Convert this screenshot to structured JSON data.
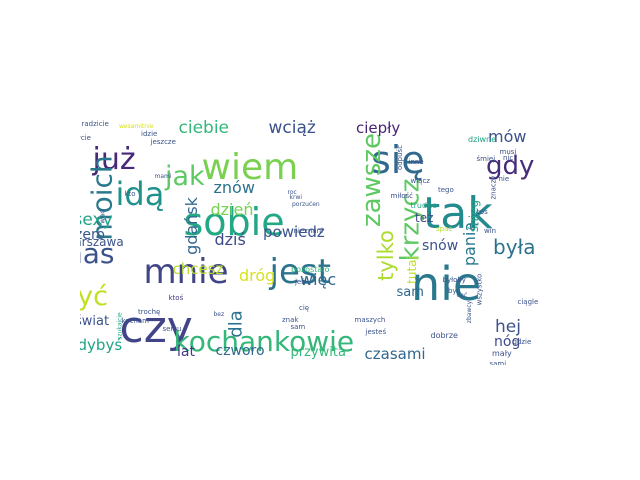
{
  "word_cloud": {
    "words": [
      {
        "text": "tak",
        "color": "#238a8d",
        "rotated": false
      },
      {
        "text": "nie",
        "color": "#2a788e",
        "rotated": false
      },
      {
        "text": "sobie",
        "color": "#22a884",
        "rotated": false
      },
      {
        "text": "mnie",
        "color": "#414487",
        "rotated": false
      },
      {
        "text": "jest",
        "color": "#2c728e",
        "rotated": false
      },
      {
        "text": "czy",
        "color": "#414487",
        "rotated": false
      },
      {
        "text": "kochankowie",
        "color": "#35b779",
        "rotated": false
      },
      {
        "text": "wiem",
        "color": "#7ad151",
        "rotated": false
      },
      {
        "text": "się",
        "color": "#31688e",
        "rotated": false
      },
      {
        "text": "idą",
        "color": "#21918c",
        "rotated": false
      },
      {
        "text": "już",
        "color": "#482878",
        "rotated": false
      },
      {
        "text": "jak",
        "color": "#5ec962",
        "rotated": false
      },
      {
        "text": "gdy",
        "color": "#472c7a",
        "rotated": false
      },
      {
        "text": "nas",
        "color": "#3b528b",
        "rotated": false
      },
      {
        "text": "być",
        "color": "#c2df23",
        "rotated": false
      },
      {
        "text": "krzycz",
        "color": "#5ec962",
        "rotated": true
      },
      {
        "text": "zawsze",
        "color": "#5ec962",
        "rotated": true
      },
      {
        "text": "moich",
        "color": "#2a788e",
        "rotated": true
      },
      {
        "text": "tylko",
        "color": "#addc30",
        "rotated": true
      },
      {
        "text": "ciebie",
        "color": "#35b779",
        "rotated": false
      },
      {
        "text": "wciąż",
        "color": "#3b528b",
        "rotated": false
      },
      {
        "text": "ciepły",
        "color": "#482475",
        "rotated": false
      },
      {
        "text": "sexy",
        "color": "#20a386",
        "rotated": false
      },
      {
        "text": "dzień",
        "color": "#7ad151",
        "rotated": false
      },
      {
        "text": "znów",
        "color": "#2c728e",
        "rotated": false
      },
      {
        "text": "gdańsk",
        "color": "#31688e",
        "rotated": true
      },
      {
        "text": "dziś",
        "color": "#3e4a89",
        "rotated": false
      },
      {
        "text": "powiedz",
        "color": "#3b528b",
        "rotated": false
      },
      {
        "text": "była",
        "color": "#2c728e",
        "rotated": false
      },
      {
        "text": "panią",
        "color": "#2a788e",
        "rotated": true
      },
      {
        "text": "mów",
        "color": "#3b528b",
        "rotated": false
      },
      {
        "text": "snów",
        "color": "#3b528b",
        "rotated": false
      },
      {
        "text": "chcesz",
        "color": "#b5de2b",
        "rotated": false
      },
      {
        "text": "dróg",
        "color": "#d8e219",
        "rotated": false
      },
      {
        "text": "więc",
        "color": "#31688e",
        "rotated": false
      },
      {
        "text": "dla",
        "color": "#2c728e",
        "rotated": true
      },
      {
        "text": "hej",
        "color": "#3b528b",
        "rotated": false
      },
      {
        "text": "nóg",
        "color": "#3e4a89",
        "rotated": false
      },
      {
        "text": "czasami",
        "color": "#31688e",
        "rotated": false
      },
      {
        "text": "czworo",
        "color": "#31688e",
        "rotated": false
      },
      {
        "text": "gdybyś",
        "color": "#20a386",
        "rotated": false
      },
      {
        "text": "lat",
        "color": "#443983",
        "rotated": false
      },
      {
        "text": "przywita",
        "color": "#35b779",
        "rotated": false
      },
      {
        "text": "świat",
        "color": "#3b528b",
        "rotated": false
      },
      {
        "text": "zero",
        "color": "#38598c",
        "rotated": false
      },
      {
        "text": "warszawa",
        "color": "#3b528b",
        "rotated": false
      },
      {
        "text": "sam",
        "color": "#31688e",
        "rotated": false
      },
      {
        "text": "też",
        "color": "#3e4a89",
        "rotated": false
      },
      {
        "text": "tutaj",
        "color": "#c2df23",
        "rotated": true
      },
      {
        "text": "śnieg",
        "color": "#20a386",
        "rotated": true
      },
      {
        "text": "pozostało",
        "color": "#35b779",
        "rotated": false
      },
      {
        "text": "jeśli",
        "color": "#3b528b",
        "rotated": false
      },
      {
        "text": "cię",
        "color": "#3b528b",
        "rotated": false
      },
      {
        "text": "ktoś",
        "color": "#443983",
        "rotated": false
      },
      {
        "text": "maszych",
        "color": "#3b528b",
        "rotated": false
      },
      {
        "text": "jesteś",
        "color": "#3b528b",
        "rotated": false
      },
      {
        "text": "dobrze",
        "color": "#3b528b",
        "rotated": false
      },
      {
        "text": "mały",
        "color": "#3b528b",
        "rotated": false
      },
      {
        "text": "sami",
        "color": "#3b528b",
        "rotated": false
      },
      {
        "text": "ciągle",
        "color": "#3b528b",
        "rotated": false
      },
      {
        "text": "gdzie",
        "color": "#3b528b",
        "rotated": false
      },
      {
        "text": "wszystko",
        "color": "#3b528b",
        "rotated": true
      },
      {
        "text": "dać",
        "color": "#3b528b",
        "rotated": false
      },
      {
        "text": "zbawcy",
        "color": "#3b528b",
        "rotated": true
      },
      {
        "text": "byłoby",
        "color": "#3b528b",
        "rotated": false
      },
      {
        "text": "być",
        "color": "#3b528b",
        "rotated": false
      },
      {
        "text": "spać",
        "color": "#b5de2b",
        "rotated": false
      },
      {
        "text": "trudne",
        "color": "#20a386",
        "rotated": false
      },
      {
        "text": "wiącz",
        "color": "#3b528b",
        "rotated": false
      },
      {
        "text": "tego",
        "color": "#3b528b",
        "rotated": false
      },
      {
        "text": "miłość",
        "color": "#3b528b",
        "rotated": false
      },
      {
        "text": "odpuść",
        "color": "#3b528b",
        "rotated": true
      },
      {
        "text": "inne",
        "color": "#3b528b",
        "rotated": false
      },
      {
        "text": "dziwne",
        "color": "#20a386",
        "rotated": false
      },
      {
        "text": "śmiej",
        "color": "#3b528b",
        "rotated": false
      },
      {
        "text": "musi",
        "color": "#3b528b",
        "rotated": false
      },
      {
        "text": "nic",
        "color": "#3b528b",
        "rotated": false
      },
      {
        "text": "nie",
        "color": "#3b528b",
        "rotated": false
      },
      {
        "text": "znaczy",
        "color": "#3b528b",
        "rotated": true
      },
      {
        "text": "cos",
        "color": "#3b528b",
        "rotated": false
      },
      {
        "text": "win",
        "color": "#3b528b",
        "rotated": false
      },
      {
        "text": "wesamitnie",
        "color": "#d8e219",
        "rotated": false
      },
      {
        "text": "radzicie",
        "color": "#3b528b",
        "rotated": false
      },
      {
        "text": "idzie",
        "color": "#3b528b",
        "rotated": false
      },
      {
        "text": "życie",
        "color": "#3b528b",
        "rotated": false
      },
      {
        "text": "jeszcze",
        "color": "#3b528b",
        "rotated": false
      },
      {
        "text": "nieznani",
        "color": "#3b528b",
        "rotated": false
      },
      {
        "text": "kto",
        "color": "#3b528b",
        "rotated": false
      },
      {
        "text": "wad",
        "color": "#3b528b",
        "rotated": true
      },
      {
        "text": "mami",
        "color": "#3b528b",
        "rotated": false
      },
      {
        "text": "roc",
        "color": "#3b528b",
        "rotated": false
      },
      {
        "text": "krwi",
        "color": "#3b528b",
        "rotated": false
      },
      {
        "text": "porzućen",
        "color": "#3b528b",
        "rotated": false
      },
      {
        "text": "szukajcie",
        "color": "#20a386",
        "rotated": true
      },
      {
        "text": "bez",
        "color": "#3b528b",
        "rotated": false
      },
      {
        "text": "kocham",
        "color": "#3b528b",
        "rotated": false
      },
      {
        "text": "trochę",
        "color": "#3b528b",
        "rotated": false
      },
      {
        "text": "sercu",
        "color": "#3b528b",
        "rotated": false
      },
      {
        "text": "znak",
        "color": "#3b528b",
        "rotated": false
      },
      {
        "text": "sam",
        "color": "#3b528b",
        "rotated": false
      }
    ]
  }
}
